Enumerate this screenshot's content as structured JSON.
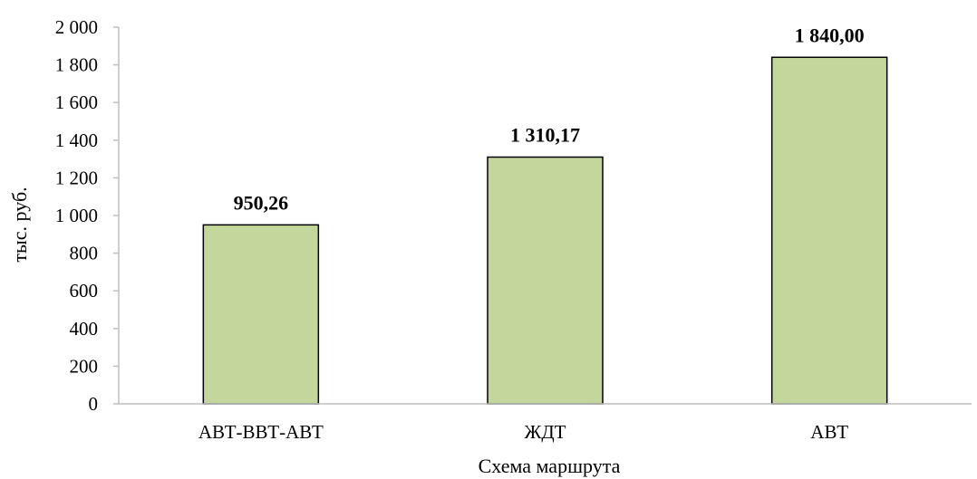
{
  "chart_data": {
    "type": "bar",
    "title": "",
    "xlabel": "Схема маршрута",
    "ylabel": "тыс. руб.",
    "categories": [
      "АВТ-ВВТ-АВТ",
      "ЖДТ",
      "АВТ"
    ],
    "values": [
      950.26,
      1310.17,
      1840.0
    ],
    "data_labels": [
      "950,26",
      "1 310,17",
      "1 840,00"
    ],
    "ylim": [
      0,
      2000
    ],
    "yticks": [
      0,
      200,
      400,
      600,
      800,
      1000,
      1200,
      1400,
      1600,
      1800,
      2000
    ],
    "ytick_labels": [
      "0",
      "200",
      "400",
      "600",
      "800",
      "1 000",
      "1 200",
      "1 400",
      "1 600",
      "1 800",
      "2 000"
    ],
    "grid": false,
    "legend": "none",
    "colors": {
      "bar_fill": "#c3d69b",
      "bar_stroke": "#000000",
      "axis": "#bfbfbf"
    }
  }
}
